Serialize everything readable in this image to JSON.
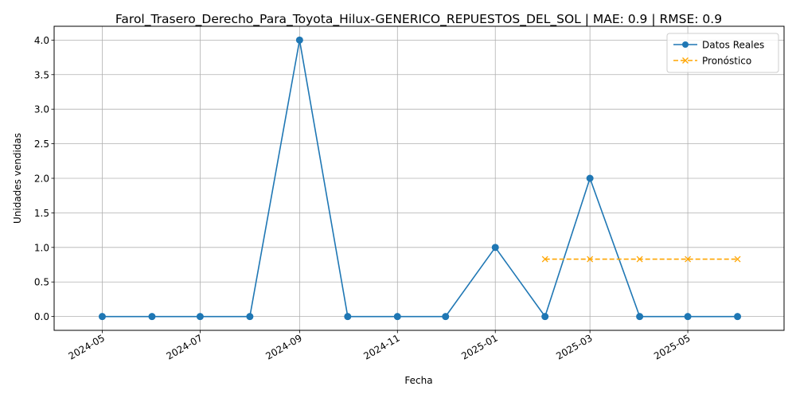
{
  "chart_data": {
    "type": "line",
    "title": "Farol_Trasero_Derecho_Para_Toyota_Hilux-GENERICO_REPUESTOS_DEL_SOL | MAE: 0.9 | RMSE: 0.9",
    "xlabel": "Fecha",
    "ylabel": "Unidades vendidas",
    "x_ticks": [
      "2024-05",
      "2024-07",
      "2024-09",
      "2024-11",
      "2025-01",
      "2025-03",
      "2025-05"
    ],
    "y_ticks": [
      "0.0",
      "0.5",
      "1.0",
      "1.5",
      "2.0",
      "2.5",
      "3.0",
      "3.5",
      "4.0"
    ],
    "ylim": [
      -0.2,
      4.2
    ],
    "xlim": [
      "2024-04-01",
      "2025-06-30"
    ],
    "grid": true,
    "legend_position": "top-right",
    "series": [
      {
        "name": "Datos Reales",
        "color": "#1f77b4",
        "linestyle": "solid",
        "marker": "circle",
        "x": [
          "2024-05-01",
          "2024-06-01",
          "2024-07-01",
          "2024-08-01",
          "2024-09-01",
          "2024-10-01",
          "2024-11-01",
          "2024-12-01",
          "2025-01-01",
          "2025-02-01",
          "2025-03-01",
          "2025-04-01",
          "2025-05-01",
          "2025-06-01"
        ],
        "values": [
          0,
          0,
          0,
          0,
          4,
          0,
          0,
          0,
          1,
          0,
          2,
          0,
          0,
          0
        ]
      },
      {
        "name": "Pronóstico",
        "color": "#ffa500",
        "linestyle": "dashed",
        "marker": "x",
        "x": [
          "2025-02-01",
          "2025-03-01",
          "2025-04-01",
          "2025-05-01",
          "2025-06-01"
        ],
        "values": [
          0.83,
          0.83,
          0.83,
          0.83,
          0.83
        ]
      }
    ]
  }
}
